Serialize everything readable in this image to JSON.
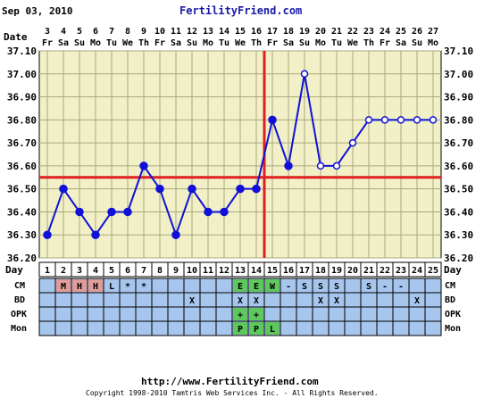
{
  "header": {
    "date": "Sep 03, 2010",
    "brand": "FertilityFriend.com"
  },
  "labels": {
    "date": "Date",
    "day": "Day",
    "cm": "CM",
    "bd": "BD",
    "opk": "OPK",
    "mon": "Mon"
  },
  "footer": {
    "url": "http://www.FertilityFriend.com",
    "copyright": "Copyright 1998-2010 Tamtris Web Services Inc. - All Rights Reserved."
  },
  "colors": {
    "plot_bg": "#f2f0c6",
    "grid": "#a8a880",
    "series": "#1010d8",
    "coverline": "#e02020",
    "lower_bg": "#a7c6ee",
    "menses": "#e09c98",
    "egg_white": "#5ec85e"
  },
  "chart_data": {
    "type": "line",
    "ylim": [
      36.2,
      37.1
    ],
    "y_ticks": [
      "37.10",
      "37.00",
      "36.90",
      "36.80",
      "36.70",
      "36.60",
      "36.50",
      "36.40",
      "36.30",
      "36.20"
    ],
    "dates": [
      "3",
      "4",
      "5",
      "6",
      "7",
      "8",
      "9",
      "10",
      "11",
      "12",
      "13",
      "14",
      "15",
      "16",
      "17",
      "18",
      "19",
      "20",
      "21",
      "22",
      "23",
      "24",
      "25",
      "26",
      "27"
    ],
    "weekdays": [
      "Fr",
      "Sa",
      "Su",
      "Mo",
      "Tu",
      "We",
      "Th",
      "Fr",
      "Sa",
      "Su",
      "Mo",
      "Tu",
      "We",
      "Th",
      "Fr",
      "Sa",
      "Su",
      "Mo",
      "Tu",
      "We",
      "Th",
      "Fr",
      "Sa",
      "Su",
      "Mo"
    ],
    "days": [
      "1",
      "2",
      "3",
      "4",
      "5",
      "6",
      "7",
      "8",
      "9",
      "10",
      "11",
      "12",
      "13",
      "14",
      "15",
      "16",
      "17",
      "18",
      "19",
      "20",
      "21",
      "22",
      "23",
      "24",
      "25"
    ],
    "temps": [
      36.3,
      36.5,
      36.4,
      36.3,
      36.4,
      36.4,
      36.6,
      36.5,
      36.3,
      36.5,
      36.4,
      36.4,
      36.5,
      36.5,
      36.8,
      36.6,
      37.0,
      36.6,
      36.6,
      36.7,
      36.8,
      36.8,
      36.8,
      36.8,
      36.8
    ],
    "marker_open": [
      false,
      false,
      false,
      false,
      false,
      false,
      false,
      false,
      false,
      false,
      false,
      false,
      false,
      false,
      false,
      false,
      true,
      true,
      true,
      true,
      true,
      true,
      true,
      true,
      true
    ],
    "coverline": 36.55,
    "ovulation_day": 14,
    "rows": {
      "cm": [
        "",
        "M",
        "H",
        "H",
        "L",
        "*",
        "*",
        "",
        "",
        "",
        "",
        "",
        "E",
        "E",
        "W",
        "-",
        "S",
        "S",
        "S",
        "",
        "S",
        "-",
        "-",
        "",
        ""
      ],
      "bd": [
        "",
        "",
        "",
        "",
        "",
        "",
        "",
        "",
        "",
        "X",
        "",
        "",
        "X",
        "X",
        "",
        "",
        "",
        "X",
        "X",
        "",
        "",
        "",
        "",
        "X",
        ""
      ],
      "opk": [
        "",
        "",
        "",
        "",
        "",
        "",
        "",
        "",
        "",
        "",
        "",
        "",
        "+",
        "+",
        "",
        "",
        "",
        "",
        "",
        "",
        "",
        "",
        "",
        "",
        ""
      ],
      "mon": [
        "",
        "",
        "",
        "",
        "",
        "",
        "",
        "",
        "",
        "",
        "",
        "",
        "P",
        "P",
        "L",
        "",
        "",
        "",
        "",
        "",
        "",
        "",
        "",
        "",
        ""
      ]
    }
  }
}
